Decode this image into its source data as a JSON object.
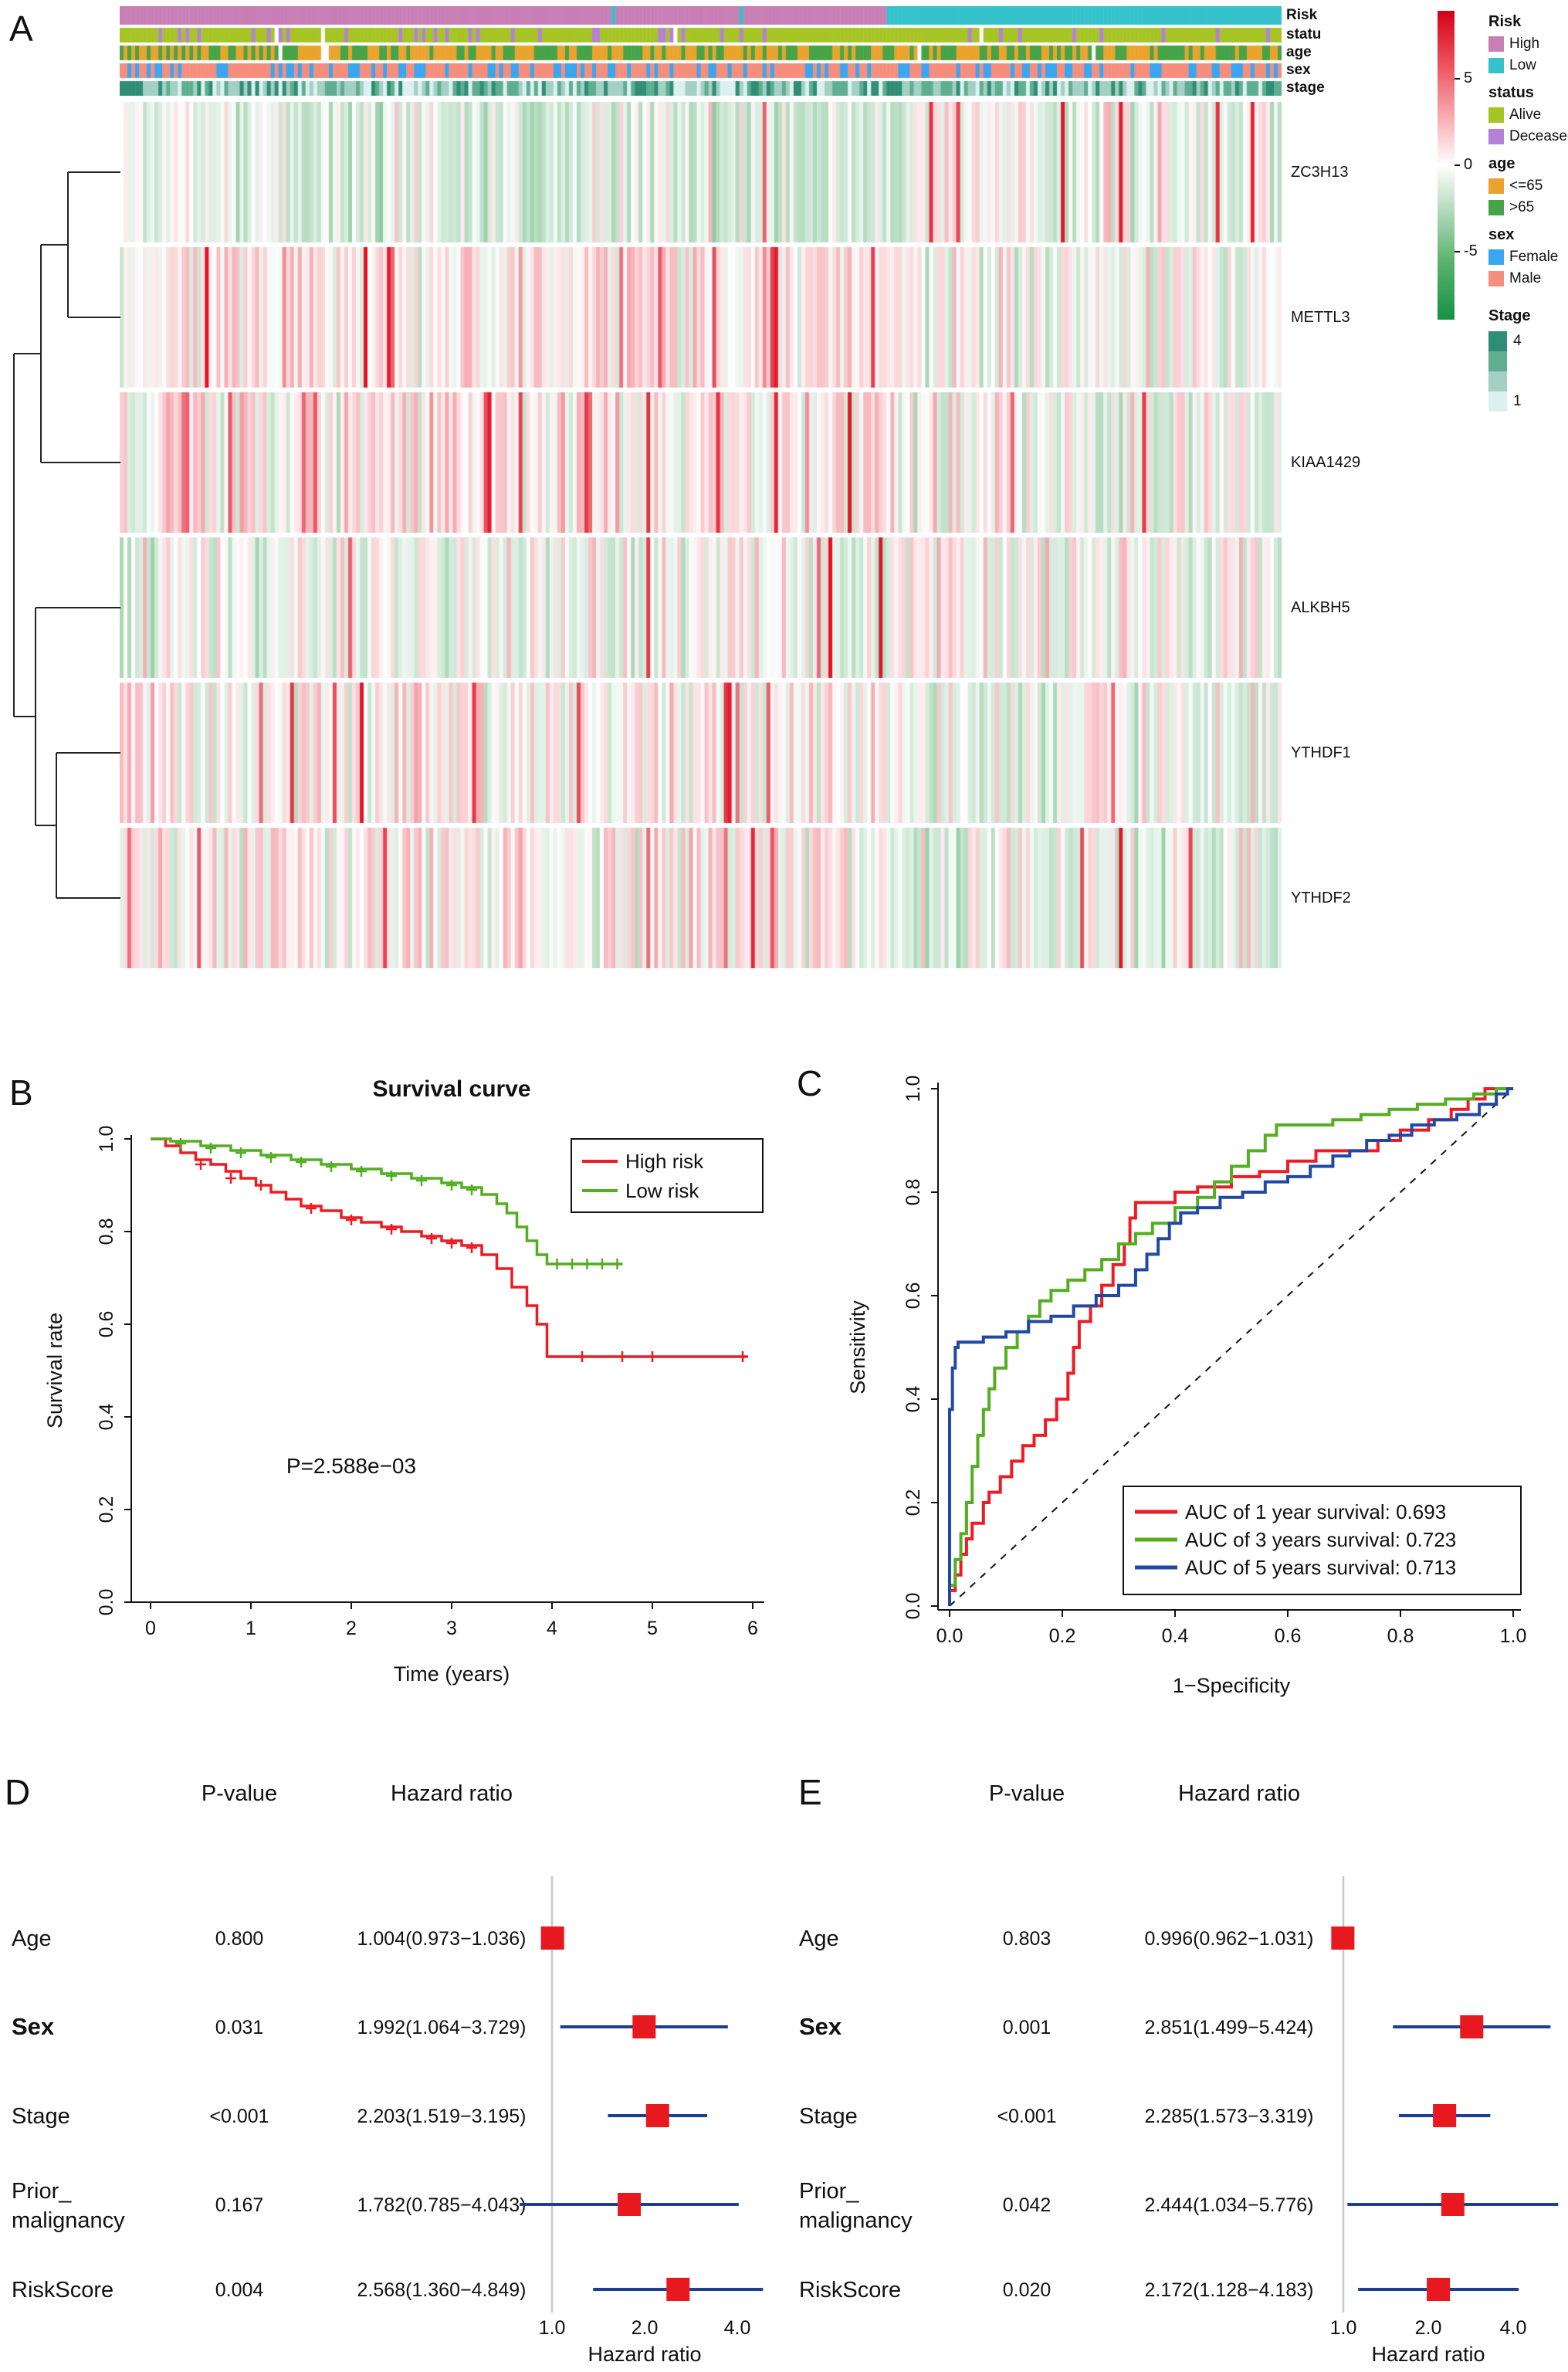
{
  "panels": {
    "A": {
      "label": "A"
    },
    "B": {
      "label": "B"
    },
    "C": {
      "label": "C"
    },
    "D": {
      "label": "D"
    },
    "E": {
      "label": "E"
    }
  },
  "chart_data": [
    {
      "id": "A",
      "type": "heatmap",
      "genes": [
        "ZC3H13",
        "METTL3",
        "KIAA1429",
        "ALKBH5",
        "YTHDF1",
        "YTHDF2"
      ],
      "annotation_rows": [
        "Risk",
        "statu",
        "age",
        "sex",
        "stage"
      ],
      "value_range": [
        -5,
        5
      ],
      "colorbar": {
        "labels": [
          "5",
          "0",
          "-5"
        ],
        "max_color": "#d40016",
        "mid_color": "#ffffff",
        "min_color": "#169245"
      },
      "risk_high_fraction": 0.66,
      "legend_groups": [
        {
          "title": "Risk",
          "items": [
            {
              "label": "High",
              "color": "#c87fb5"
            },
            {
              "label": "Low",
              "color": "#35c2cb"
            }
          ]
        },
        {
          "title": "status",
          "items": [
            {
              "label": "Alive",
              "color": "#a6c525"
            },
            {
              "label": "Deceased",
              "color": "#b581d6"
            }
          ]
        },
        {
          "title": "age",
          "items": [
            {
              "label": "<=65",
              "color": "#eaa42e"
            },
            {
              "label": ">65",
              "color": "#46a347"
            }
          ]
        },
        {
          "title": "sex",
          "items": [
            {
              "label": "Female",
              "color": "#3aa5f0"
            },
            {
              "label": "Male",
              "color": "#f58e7d"
            }
          ]
        }
      ],
      "stage_legend": {
        "title": "Stage",
        "colors": [
          "#2f8e73",
          "#5fae92",
          "#a3d0c3",
          "#dcf0f0"
        ],
        "top_label": "4",
        "bottom_label": "1"
      }
    },
    {
      "id": "B",
      "type": "line",
      "subtype": "kaplan_meier",
      "title": "Survival curve",
      "xlabel": "Time (years)",
      "ylabel": "Survival rate",
      "xlim": [
        0,
        6
      ],
      "ylim": [
        0,
        1
      ],
      "xticks": [
        "0",
        "1",
        "2",
        "3",
        "4",
        "5",
        "6"
      ],
      "yticks": [
        "0.0",
        "0.2",
        "0.4",
        "0.6",
        "0.8",
        "1.0"
      ],
      "annotation": "P=2.588e−03",
      "legend": {
        "position": "top-right",
        "entries": [
          {
            "label": "High risk",
            "color": "#ec1c24"
          },
          {
            "label": "Low risk",
            "color": "#54ae21"
          }
        ]
      },
      "series": [
        {
          "name": "High risk",
          "color": "#ec1c24",
          "points": [
            [
              0,
              1.0
            ],
            [
              0.15,
              0.985
            ],
            [
              0.3,
              0.97
            ],
            [
              0.45,
              0.955
            ],
            [
              0.6,
              0.945
            ],
            [
              0.75,
              0.93
            ],
            [
              0.9,
              0.915
            ],
            [
              1.05,
              0.9
            ],
            [
              1.2,
              0.885
            ],
            [
              1.35,
              0.87
            ],
            [
              1.5,
              0.855
            ],
            [
              1.7,
              0.845
            ],
            [
              1.9,
              0.83
            ],
            [
              2.1,
              0.82
            ],
            [
              2.3,
              0.81
            ],
            [
              2.5,
              0.8
            ],
            [
              2.7,
              0.79
            ],
            [
              2.9,
              0.78
            ],
            [
              3.1,
              0.77
            ],
            [
              3.3,
              0.75
            ],
            [
              3.45,
              0.72
            ],
            [
              3.6,
              0.68
            ],
            [
              3.75,
              0.64
            ],
            [
              3.85,
              0.6
            ],
            [
              3.95,
              0.53
            ],
            [
              5.95,
              0.53
            ]
          ],
          "censor_marks": [
            [
              0.5,
              0.945
            ],
            [
              0.8,
              0.915
            ],
            [
              1.1,
              0.9
            ],
            [
              1.6,
              0.85
            ],
            [
              2.0,
              0.825
            ],
            [
              2.4,
              0.805
            ],
            [
              2.8,
              0.785
            ],
            [
              3.0,
              0.775
            ],
            [
              3.2,
              0.765
            ],
            [
              4.3,
              0.53
            ],
            [
              4.7,
              0.53
            ],
            [
              5.0,
              0.53
            ],
            [
              5.9,
              0.53
            ]
          ]
        },
        {
          "name": "Low risk",
          "color": "#54ae21",
          "points": [
            [
              0,
              1.0
            ],
            [
              0.2,
              0.995
            ],
            [
              0.5,
              0.985
            ],
            [
              0.8,
              0.975
            ],
            [
              1.1,
              0.965
            ],
            [
              1.4,
              0.955
            ],
            [
              1.7,
              0.945
            ],
            [
              2.0,
              0.935
            ],
            [
              2.3,
              0.925
            ],
            [
              2.6,
              0.915
            ],
            [
              2.9,
              0.905
            ],
            [
              3.1,
              0.895
            ],
            [
              3.3,
              0.88
            ],
            [
              3.45,
              0.86
            ],
            [
              3.55,
              0.84
            ],
            [
              3.65,
              0.81
            ],
            [
              3.75,
              0.78
            ],
            [
              3.85,
              0.75
            ],
            [
              3.95,
              0.73
            ],
            [
              4.7,
              0.73
            ]
          ],
          "censor_marks": [
            [
              0.3,
              0.99
            ],
            [
              0.6,
              0.98
            ],
            [
              0.9,
              0.97
            ],
            [
              1.2,
              0.96
            ],
            [
              1.5,
              0.95
            ],
            [
              1.8,
              0.94
            ],
            [
              2.1,
              0.93
            ],
            [
              2.4,
              0.92
            ],
            [
              2.7,
              0.91
            ],
            [
              3.0,
              0.9
            ],
            [
              3.2,
              0.89
            ],
            [
              4.05,
              0.73
            ],
            [
              4.2,
              0.73
            ],
            [
              4.35,
              0.73
            ],
            [
              4.5,
              0.73
            ],
            [
              4.65,
              0.73
            ]
          ]
        }
      ]
    },
    {
      "id": "C",
      "type": "line",
      "subtype": "roc",
      "xlabel": "1−Specificity",
      "ylabel": "Sensitivity",
      "xlim": [
        0,
        1
      ],
      "ylim": [
        0,
        1
      ],
      "xticks": [
        "0.0",
        "0.2",
        "0.4",
        "0.6",
        "0.8",
        "1.0"
      ],
      "yticks": [
        "0.0",
        "0.2",
        "0.4",
        "0.6",
        "0.8",
        "1.0"
      ],
      "diagonal_reference": true,
      "legend": {
        "position": "bottom-right",
        "entries": [
          {
            "label": "AUC of 1 year survival:  0.693",
            "color": "#ec1c24"
          },
          {
            "label": "AUC of 3 years survival: 0.723",
            "color": "#54ae21"
          },
          {
            "label": "AUC of 5 years survival: 0.713",
            "color": "#2149a4"
          }
        ]
      },
      "series": [
        {
          "name": "1 year survival",
          "auc": 0.693,
          "color": "#ec1c24",
          "points": [
            [
              0,
              0
            ],
            [
              0.01,
              0.03
            ],
            [
              0.02,
              0.06
            ],
            [
              0.03,
              0.1
            ],
            [
              0.04,
              0.13
            ],
            [
              0.06,
              0.16
            ],
            [
              0.07,
              0.2
            ],
            [
              0.09,
              0.22
            ],
            [
              0.11,
              0.25
            ],
            [
              0.13,
              0.28
            ],
            [
              0.15,
              0.31
            ],
            [
              0.17,
              0.33
            ],
            [
              0.19,
              0.36
            ],
            [
              0.21,
              0.4
            ],
            [
              0.22,
              0.45
            ],
            [
              0.23,
              0.5
            ],
            [
              0.25,
              0.55
            ],
            [
              0.27,
              0.58
            ],
            [
              0.29,
              0.62
            ],
            [
              0.31,
              0.66
            ],
            [
              0.32,
              0.7
            ],
            [
              0.33,
              0.75
            ],
            [
              0.34,
              0.78
            ],
            [
              0.4,
              0.78
            ],
            [
              0.44,
              0.8
            ],
            [
              0.5,
              0.81
            ],
            [
              0.55,
              0.83
            ],
            [
              0.6,
              0.84
            ],
            [
              0.65,
              0.86
            ],
            [
              0.7,
              0.88
            ],
            [
              0.76,
              0.88
            ],
            [
              0.8,
              0.9
            ],
            [
              0.85,
              0.92
            ],
            [
              0.89,
              0.94
            ],
            [
              0.92,
              0.96
            ],
            [
              0.95,
              0.98
            ],
            [
              0.97,
              1.0
            ],
            [
              1,
              1
            ]
          ]
        },
        {
          "name": "3 years survival",
          "auc": 0.723,
          "color": "#54ae21",
          "points": [
            [
              0,
              0
            ],
            [
              0.01,
              0.04
            ],
            [
              0.02,
              0.09
            ],
            [
              0.03,
              0.14
            ],
            [
              0.04,
              0.2
            ],
            [
              0.05,
              0.27
            ],
            [
              0.06,
              0.33
            ],
            [
              0.07,
              0.38
            ],
            [
              0.08,
              0.42
            ],
            [
              0.1,
              0.46
            ],
            [
              0.12,
              0.5
            ],
            [
              0.14,
              0.53
            ],
            [
              0.16,
              0.56
            ],
            [
              0.18,
              0.59
            ],
            [
              0.21,
              0.61
            ],
            [
              0.24,
              0.63
            ],
            [
              0.27,
              0.65
            ],
            [
              0.3,
              0.67
            ],
            [
              0.33,
              0.7
            ],
            [
              0.36,
              0.72
            ],
            [
              0.4,
              0.74
            ],
            [
              0.44,
              0.77
            ],
            [
              0.47,
              0.79
            ],
            [
              0.5,
              0.82
            ],
            [
              0.53,
              0.85
            ],
            [
              0.56,
              0.88
            ],
            [
              0.58,
              0.91
            ],
            [
              0.6,
              0.93
            ],
            [
              0.68,
              0.93
            ],
            [
              0.73,
              0.94
            ],
            [
              0.78,
              0.95
            ],
            [
              0.83,
              0.96
            ],
            [
              0.88,
              0.97
            ],
            [
              0.93,
              0.98
            ],
            [
              0.97,
              0.99
            ],
            [
              1,
              1
            ]
          ]
        },
        {
          "name": "5 years survival",
          "auc": 0.713,
          "color": "#2149a4",
          "points": [
            [
              0,
              0
            ],
            [
              0,
              0.27
            ],
            [
              0.005,
              0.38
            ],
            [
              0.01,
              0.46
            ],
            [
              0.015,
              0.5
            ],
            [
              0.06,
              0.51
            ],
            [
              0.1,
              0.52
            ],
            [
              0.14,
              0.53
            ],
            [
              0.18,
              0.55
            ],
            [
              0.22,
              0.56
            ],
            [
              0.26,
              0.58
            ],
            [
              0.3,
              0.6
            ],
            [
              0.33,
              0.62
            ],
            [
              0.35,
              0.65
            ],
            [
              0.37,
              0.68
            ],
            [
              0.39,
              0.71
            ],
            [
              0.41,
              0.74
            ],
            [
              0.44,
              0.76
            ],
            [
              0.48,
              0.77
            ],
            [
              0.52,
              0.79
            ],
            [
              0.56,
              0.8
            ],
            [
              0.6,
              0.82
            ],
            [
              0.64,
              0.83
            ],
            [
              0.68,
              0.85
            ],
            [
              0.71,
              0.87
            ],
            [
              0.74,
              0.88
            ],
            [
              0.78,
              0.9
            ],
            [
              0.82,
              0.91
            ],
            [
              0.86,
              0.93
            ],
            [
              0.9,
              0.94
            ],
            [
              0.94,
              0.95
            ],
            [
              0.97,
              0.97
            ],
            [
              0.99,
              0.99
            ],
            [
              1,
              1
            ]
          ]
        }
      ]
    },
    {
      "id": "D",
      "type": "forest",
      "col_headers": [
        "P-value",
        "Hazard ratio"
      ],
      "axis_ticks": [
        "1.0",
        "2.0",
        "4.0"
      ],
      "axis_tick_values": [
        1,
        2,
        4
      ],
      "axis_label": "Hazard ratio",
      "square_color": "#e8191e",
      "ci_color": "#1c3f94",
      "rows": [
        {
          "label": "Age",
          "bold": false,
          "p": "0.800",
          "hr_text": "1.004(0.973−1.036)",
          "hr": 1.004,
          "lo": 0.973,
          "hi": 1.036
        },
        {
          "label": "Sex",
          "bold": true,
          "p": "0.031",
          "hr_text": "1.992(1.064−3.729)",
          "hr": 1.992,
          "lo": 1.064,
          "hi": 3.729
        },
        {
          "label": "Stage",
          "bold": false,
          "p": "<0.001",
          "hr_text": "2.203(1.519−3.195)",
          "hr": 2.203,
          "lo": 1.519,
          "hi": 3.195
        },
        {
          "label": "Prior_",
          "label2": "malignancy",
          "bold": false,
          "p": "0.167",
          "hr_text": "1.782(0.785−4.043)",
          "hr": 1.782,
          "lo": 0.785,
          "hi": 4.043
        },
        {
          "label": "RiskScore",
          "bold": false,
          "p": "0.004",
          "hr_text": "2.568(1.360−4.849)",
          "hr": 2.568,
          "lo": 1.36,
          "hi": 4.849
        }
      ]
    },
    {
      "id": "E",
      "type": "forest",
      "col_headers": [
        "P-value",
        "Hazard ratio"
      ],
      "axis_ticks": [
        "1.0",
        "2.0",
        "4.0"
      ],
      "axis_tick_values": [
        1,
        2,
        4
      ],
      "axis_label": "Hazard ratio",
      "square_color": "#e8191e",
      "ci_color": "#1c3f94",
      "rows": [
        {
          "label": "Age",
          "bold": false,
          "p": "0.803",
          "hr_text": "0.996(0.962−1.031)",
          "hr": 0.996,
          "lo": 0.962,
          "hi": 1.031
        },
        {
          "label": "Sex",
          "bold": true,
          "p": "0.001",
          "hr_text": "2.851(1.499−5.424)",
          "hr": 2.851,
          "lo": 1.499,
          "hi": 5.424
        },
        {
          "label": "Stage",
          "bold": false,
          "p": "<0.001",
          "hr_text": "2.285(1.573−3.319)",
          "hr": 2.285,
          "lo": 1.573,
          "hi": 3.319
        },
        {
          "label": "Prior_",
          "label2": "malignancy",
          "bold": false,
          "p": "0.042",
          "hr_text": "2.444(1.034−5.776)",
          "hr": 2.444,
          "lo": 1.034,
          "hi": 5.776
        },
        {
          "label": "RiskScore",
          "bold": false,
          "p": "0.020",
          "hr_text": "2.172(1.128−4.183)",
          "hr": 2.172,
          "lo": 1.128,
          "hi": 4.183
        }
      ]
    }
  ]
}
